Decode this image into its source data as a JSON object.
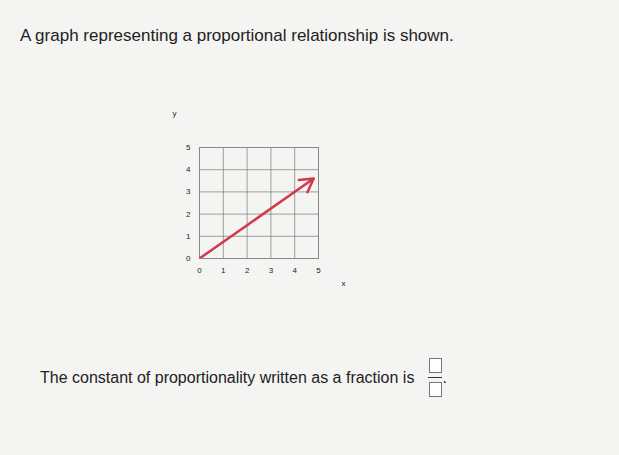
{
  "chart_data": {
    "type": "line",
    "title": "A graph representing a proportional relationship is shown.",
    "annotations": [
      "The constant of proportionality written as a fraction is",
      "."
    ],
    "xlabel": "x",
    "ylabel": "y",
    "x": [
      0,
      4.8
    ],
    "values": [
      0,
      3.6
    ],
    "color": "#d2384f",
    "marker": "arrow",
    "xlim": [
      0,
      5
    ],
    "xticks": [
      0,
      1,
      2,
      3,
      4,
      5
    ],
    "ylim": [
      0,
      5
    ],
    "yticks": [
      0,
      1,
      2,
      3,
      4,
      5
    ],
    "grid": true
  }
}
